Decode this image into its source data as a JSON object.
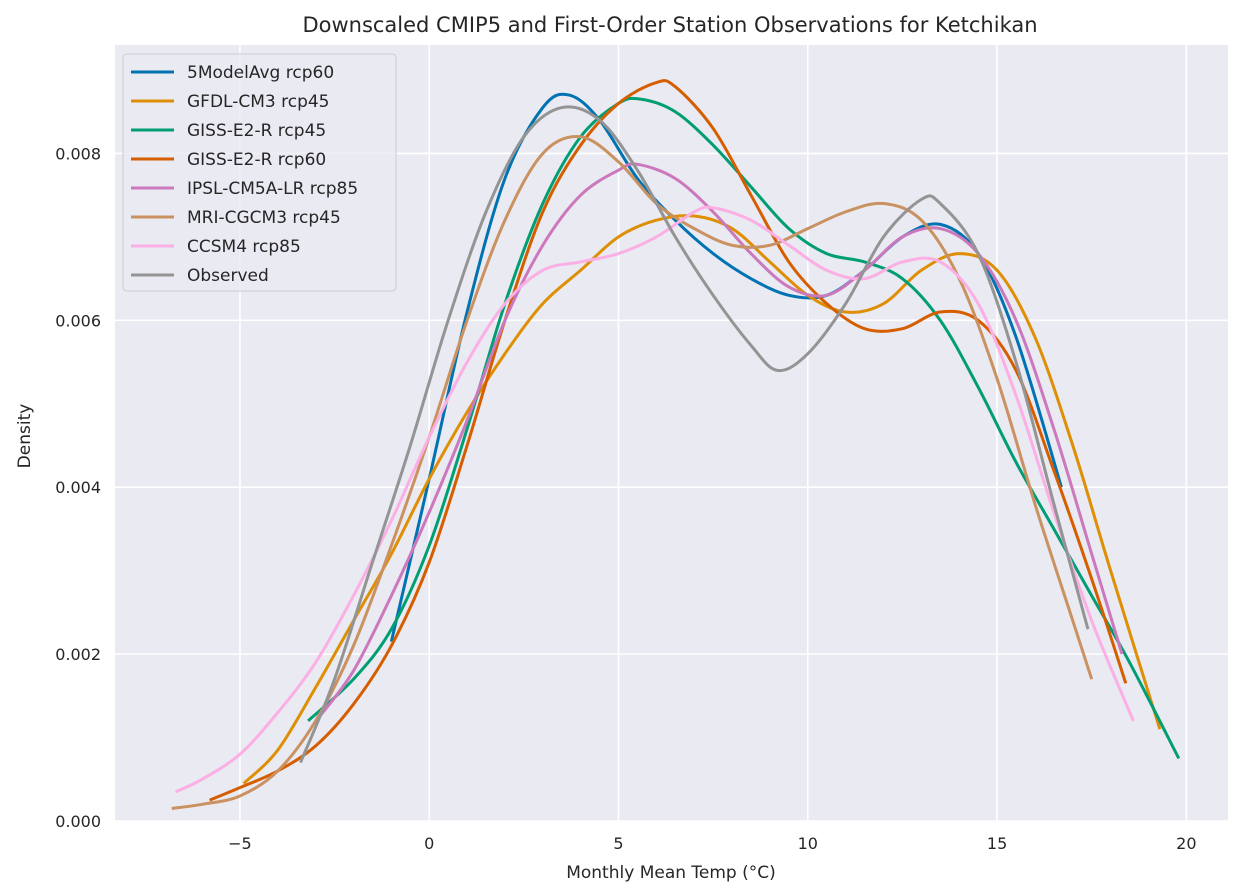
{
  "chart_data": {
    "type": "line",
    "title": "Downscaled CMIP5 and First-Order Station Observations for Ketchikan",
    "xlabel": "Monthly Mean Temp (°C)",
    "ylabel": "Density",
    "xlim": [
      -8.3,
      21.1
    ],
    "ylim": [
      0,
      0.0093
    ],
    "x_ticks": [
      -5,
      0,
      5,
      10,
      15,
      20
    ],
    "x_tick_labels": [
      "−5",
      "0",
      "5",
      "10",
      "15",
      "20"
    ],
    "y_ticks": [
      0.0,
      0.002,
      0.004,
      0.006,
      0.008
    ],
    "y_tick_labels": [
      "0.000",
      "0.002",
      "0.004",
      "0.006",
      "0.008"
    ],
    "grid": true,
    "legend_position": "upper-left",
    "background_color": "#eaeaf2",
    "grid_color": "#ffffff",
    "series": [
      {
        "name": "5ModelAvg rcp60",
        "color": "#0173b2",
        "points": [
          [
            -1.0,
            0.00215
          ],
          [
            0.0,
            0.0041
          ],
          [
            1.0,
            0.0061
          ],
          [
            2.0,
            0.0077
          ],
          [
            3.0,
            0.00855
          ],
          [
            3.7,
            0.0087
          ],
          [
            4.5,
            0.0084
          ],
          [
            5.5,
            0.0077
          ],
          [
            6.5,
            0.0072
          ],
          [
            7.5,
            0.0068
          ],
          [
            8.5,
            0.0065
          ],
          [
            9.5,
            0.0063
          ],
          [
            10.5,
            0.0063
          ],
          [
            11.5,
            0.0066
          ],
          [
            12.5,
            0.007
          ],
          [
            13.5,
            0.00715
          ],
          [
            14.5,
            0.0068
          ],
          [
            15.5,
            0.0058
          ],
          [
            16.7,
            0.004
          ]
        ]
      },
      {
        "name": "GFDL-CM3 rcp45",
        "color": "#de8f05",
        "points": [
          [
            -4.9,
            0.00045
          ],
          [
            -4.0,
            0.00085
          ],
          [
            -3.0,
            0.0016
          ],
          [
            -2.0,
            0.0024
          ],
          [
            -1.0,
            0.0032
          ],
          [
            0.0,
            0.0041
          ],
          [
            1.0,
            0.0049
          ],
          [
            2.0,
            0.0056
          ],
          [
            3.0,
            0.0062
          ],
          [
            4.0,
            0.0066
          ],
          [
            5.0,
            0.007
          ],
          [
            6.0,
            0.0072
          ],
          [
            7.0,
            0.00725
          ],
          [
            8.0,
            0.0071
          ],
          [
            9.0,
            0.0067
          ],
          [
            10.0,
            0.0063
          ],
          [
            11.0,
            0.0061
          ],
          [
            12.0,
            0.0062
          ],
          [
            13.0,
            0.0066
          ],
          [
            14.0,
            0.0068
          ],
          [
            15.0,
            0.0066
          ],
          [
            16.0,
            0.0058
          ],
          [
            17.0,
            0.0045
          ],
          [
            18.0,
            0.003
          ],
          [
            19.3,
            0.0011
          ]
        ]
      },
      {
        "name": "GISS-E2-R rcp45",
        "color": "#029e73",
        "points": [
          [
            -3.2,
            0.0012
          ],
          [
            -2.0,
            0.0017
          ],
          [
            -1.0,
            0.0023
          ],
          [
            0.0,
            0.0033
          ],
          [
            1.0,
            0.0047
          ],
          [
            2.0,
            0.0062
          ],
          [
            3.0,
            0.0074
          ],
          [
            4.0,
            0.0082
          ],
          [
            5.0,
            0.0086
          ],
          [
            5.6,
            0.00865
          ],
          [
            6.5,
            0.0085
          ],
          [
            7.5,
            0.0081
          ],
          [
            8.5,
            0.0076
          ],
          [
            9.5,
            0.0071
          ],
          [
            10.5,
            0.0068
          ],
          [
            11.5,
            0.0067
          ],
          [
            12.5,
            0.0065
          ],
          [
            13.5,
            0.006
          ],
          [
            14.5,
            0.0052
          ],
          [
            15.5,
            0.0043
          ],
          [
            16.5,
            0.0035
          ],
          [
            17.5,
            0.0027
          ],
          [
            18.5,
            0.0019
          ],
          [
            19.8,
            0.00075
          ]
        ]
      },
      {
        "name": "GISS-E2-R rcp60",
        "color": "#d55e00",
        "points": [
          [
            -5.8,
            0.00025
          ],
          [
            -5.0,
            0.0004
          ],
          [
            -4.0,
            0.0006
          ],
          [
            -3.0,
            0.0009
          ],
          [
            -2.0,
            0.0014
          ],
          [
            -1.0,
            0.0021
          ],
          [
            0.0,
            0.0031
          ],
          [
            1.0,
            0.0045
          ],
          [
            2.0,
            0.006
          ],
          [
            3.0,
            0.0073
          ],
          [
            4.0,
            0.0081
          ],
          [
            5.0,
            0.0086
          ],
          [
            6.0,
            0.00885
          ],
          [
            6.5,
            0.0088
          ],
          [
            7.5,
            0.0083
          ],
          [
            8.5,
            0.0075
          ],
          [
            9.5,
            0.0067
          ],
          [
            10.5,
            0.0062
          ],
          [
            11.5,
            0.0059
          ],
          [
            12.5,
            0.0059
          ],
          [
            13.5,
            0.0061
          ],
          [
            14.5,
            0.006
          ],
          [
            15.5,
            0.0054
          ],
          [
            16.5,
            0.0042
          ],
          [
            17.5,
            0.0029
          ],
          [
            18.4,
            0.00165
          ]
        ]
      },
      {
        "name": "IPSL-CM5A-LR rcp85",
        "color": "#cc78bc",
        "points": [
          [
            -2.9,
            0.00125
          ],
          [
            -2.0,
            0.0018
          ],
          [
            -1.0,
            0.0027
          ],
          [
            0.0,
            0.0037
          ],
          [
            1.0,
            0.0048
          ],
          [
            2.0,
            0.006
          ],
          [
            3.0,
            0.0069
          ],
          [
            4.0,
            0.0075
          ],
          [
            5.0,
            0.0078
          ],
          [
            5.5,
            0.00787
          ],
          [
            6.5,
            0.0077
          ],
          [
            7.5,
            0.0073
          ],
          [
            8.5,
            0.0068
          ],
          [
            9.5,
            0.0064
          ],
          [
            10.5,
            0.0063
          ],
          [
            11.5,
            0.0066
          ],
          [
            12.5,
            0.007
          ],
          [
            13.5,
            0.0071
          ],
          [
            14.5,
            0.0068
          ],
          [
            15.5,
            0.006
          ],
          [
            16.5,
            0.0047
          ],
          [
            17.5,
            0.0032
          ],
          [
            18.3,
            0.002
          ]
        ]
      },
      {
        "name": "MRI-CGCM3 rcp45",
        "color": "#ca9161",
        "points": [
          [
            -6.8,
            0.00015
          ],
          [
            -6.0,
            0.0002
          ],
          [
            -5.0,
            0.0003
          ],
          [
            -4.0,
            0.0006
          ],
          [
            -3.0,
            0.0012
          ],
          [
            -2.0,
            0.0021
          ],
          [
            -1.0,
            0.0033
          ],
          [
            0.0,
            0.0046
          ],
          [
            1.0,
            0.006
          ],
          [
            2.0,
            0.0072
          ],
          [
            3.0,
            0.008
          ],
          [
            4.0,
            0.0082
          ],
          [
            5.0,
            0.0079
          ],
          [
            6.0,
            0.0074
          ],
          [
            7.0,
            0.0071
          ],
          [
            8.0,
            0.0069
          ],
          [
            9.0,
            0.0069
          ],
          [
            10.0,
            0.0071
          ],
          [
            11.0,
            0.0073
          ],
          [
            12.0,
            0.0074
          ],
          [
            13.0,
            0.0072
          ],
          [
            14.0,
            0.0065
          ],
          [
            15.0,
            0.0053
          ],
          [
            16.0,
            0.0038
          ],
          [
            17.0,
            0.0024
          ],
          [
            17.5,
            0.0017
          ]
        ]
      },
      {
        "name": "CCSM4 rcp85",
        "color": "#fbafe4",
        "points": [
          [
            -6.7,
            0.00035
          ],
          [
            -6.0,
            0.0005
          ],
          [
            -5.0,
            0.0008
          ],
          [
            -4.0,
            0.0013
          ],
          [
            -3.0,
            0.0019
          ],
          [
            -2.0,
            0.0027
          ],
          [
            -1.0,
            0.0036
          ],
          [
            0.0,
            0.0046
          ],
          [
            1.0,
            0.0055
          ],
          [
            2.0,
            0.0062
          ],
          [
            3.0,
            0.0066
          ],
          [
            4.0,
            0.0067
          ],
          [
            5.0,
            0.0068
          ],
          [
            6.0,
            0.007
          ],
          [
            7.0,
            0.0073
          ],
          [
            7.5,
            0.00735
          ],
          [
            8.5,
            0.0072
          ],
          [
            9.5,
            0.0069
          ],
          [
            10.5,
            0.0066
          ],
          [
            11.5,
            0.0065
          ],
          [
            12.5,
            0.0067
          ],
          [
            13.5,
            0.0067
          ],
          [
            14.5,
            0.0062
          ],
          [
            15.5,
            0.0051
          ],
          [
            16.5,
            0.0037
          ],
          [
            17.5,
            0.0024
          ],
          [
            18.6,
            0.0012
          ]
        ]
      },
      {
        "name": "Observed",
        "color": "#949494",
        "points": [
          [
            -3.4,
            0.0007
          ],
          [
            -2.5,
            0.0017
          ],
          [
            -1.5,
            0.0031
          ],
          [
            -0.5,
            0.0045
          ],
          [
            0.5,
            0.006
          ],
          [
            1.5,
            0.0073
          ],
          [
            2.5,
            0.0082
          ],
          [
            3.5,
            0.00855
          ],
          [
            4.5,
            0.0084
          ],
          [
            5.5,
            0.0078
          ],
          [
            6.5,
            0.007
          ],
          [
            7.5,
            0.0063
          ],
          [
            8.5,
            0.0057
          ],
          [
            9.2,
            0.0054
          ],
          [
            10.0,
            0.0056
          ],
          [
            11.0,
            0.0062
          ],
          [
            12.0,
            0.007
          ],
          [
            13.0,
            0.00745
          ],
          [
            13.5,
            0.0074
          ],
          [
            14.5,
            0.0068
          ],
          [
            15.5,
            0.0055
          ],
          [
            16.5,
            0.0038
          ],
          [
            17.4,
            0.0023
          ]
        ]
      }
    ]
  }
}
